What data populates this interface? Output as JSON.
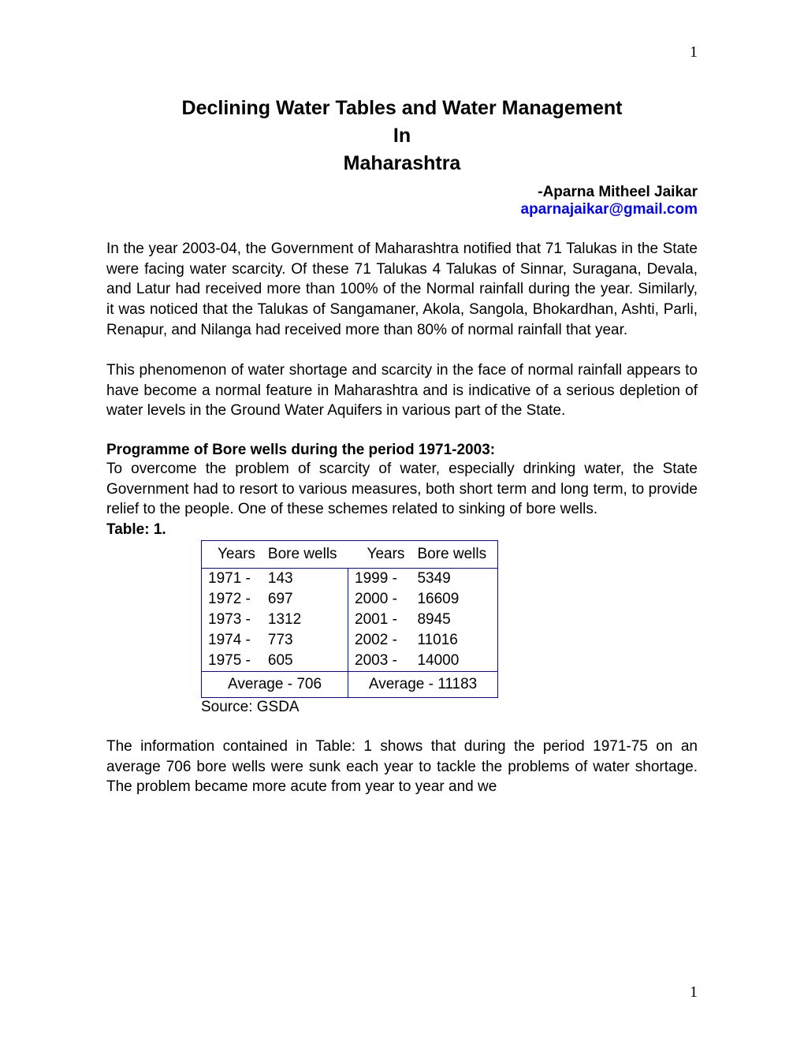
{
  "page": {
    "number_top": "1",
    "number_bottom": "1"
  },
  "title": {
    "line1": "Declining Water Tables and Water Management",
    "line2": "In",
    "line3": "Maharashtra"
  },
  "author": {
    "name": "-Aparna Mitheel Jaikar",
    "email": "aparnajaikar@gmail.com"
  },
  "paragraphs": {
    "p1": "In the year 2003-04, the Government of Maharashtra notified that 71 Talukas in the State were facing water scarcity. Of these 71 Talukas 4 Talukas of Sinnar, Suragana, Devala, and Latur had received more than 100% of the Normal rainfall during the year. Similarly, it was noticed that the Talukas of Sangamaner, Akola, Sangola, Bhokardhan, Ashti, Parli, Renapur, and Nilanga had received more than 80% of normal rainfall that year.",
    "p2": "This phenomenon of water shortage and scarcity in the face of normal rainfall appears to have become a normal feature in Maharashtra and is indicative of a serious depletion of water levels in the Ground Water Aquifers in various part of the State.",
    "heading": "Programme of Bore wells during the period 1971-2003:",
    "p3": "To overcome the problem of scarcity of water, especially drinking water, the State Government had to resort to various measures, both short term and long term, to provide relief to the people. One of these schemes related to sinking of bore wells.",
    "p4": "The information contained in Table: 1 shows that during the period 1971-75 on an average 706 bore wells were sunk each year to tackle the problems of water shortage. The problem became more acute from year to year and we"
  },
  "table": {
    "label": "Table: 1.",
    "border_color": "#0000ff",
    "headers": {
      "col1": "Years",
      "col2": "Bore wells",
      "col3": "Years",
      "col4": "Bore wells"
    },
    "rows": [
      {
        "y1": "1971  -",
        "v1": "143",
        "y2": "1999  -",
        "v2": "5349"
      },
      {
        "y1": "1972  -",
        "v1": "697",
        "y2": "2000  -",
        "v2": "16609"
      },
      {
        "y1": "1973  -",
        "v1": "1312",
        "y2": "2001  -",
        "v2": "8945"
      },
      {
        "y1": "1974  -",
        "v1": "773",
        "y2": "2002  -",
        "v2": "11016"
      },
      {
        "y1": "1975  -",
        "v1": "605",
        "y2": "2003  -",
        "v2": "14000"
      }
    ],
    "average": {
      "left": "Average - 706",
      "right": "Average - 11183"
    },
    "source": "Source: GSDA"
  }
}
